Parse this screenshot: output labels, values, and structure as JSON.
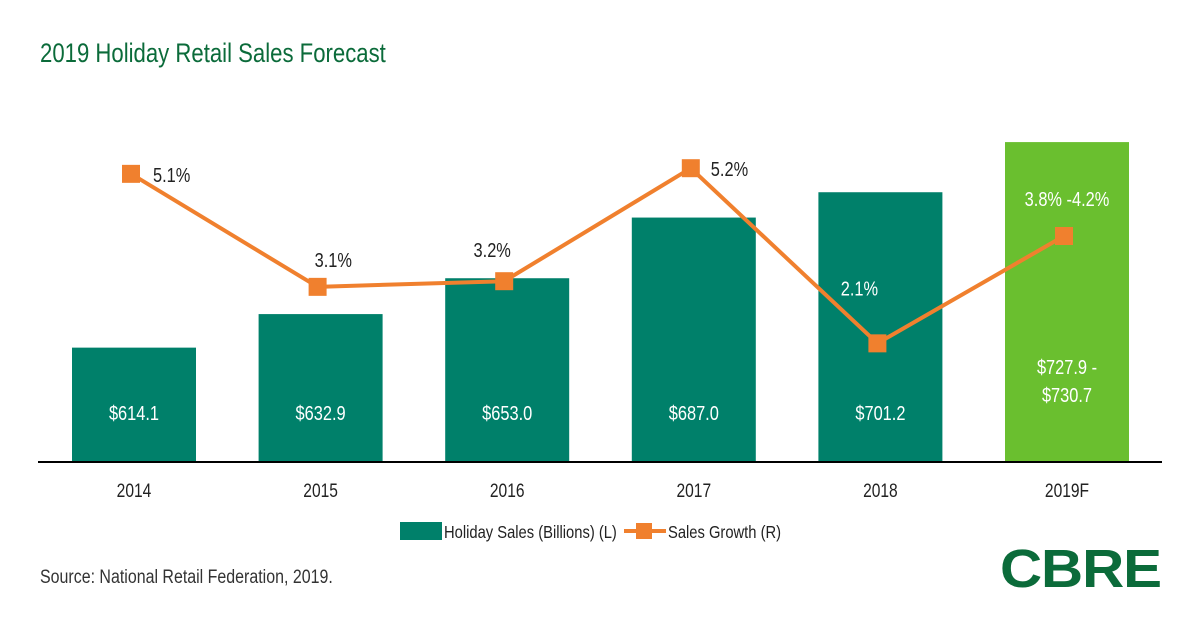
{
  "title": "2019 Holiday Retail Sales Forecast",
  "source": "Source: National Retail Federation, 2019.",
  "logo_text": "CBRE",
  "colors": {
    "bar": "#00806a",
    "bar_forecast": "#6abf2f",
    "line": "#f0802e",
    "title": "#0b6b3a"
  },
  "chart_data": {
    "type": "bar",
    "categories": [
      "2014",
      "2015",
      "2016",
      "2017",
      "2018",
      "2019F"
    ],
    "series": [
      {
        "name": "Holiday Sales (Billions) (L)",
        "type": "bar",
        "axis": "left",
        "values": [
          614.1,
          632.9,
          653.0,
          687.0,
          701.2,
          729.3
        ],
        "labels": [
          "$614.1",
          "$632.9",
          "$653.0",
          "$687.0",
          "$701.2",
          [
            "$727.9 -",
            "$730.7"
          ]
        ]
      },
      {
        "name": "Sales Growth (R)",
        "type": "line",
        "axis": "right",
        "values": [
          5.1,
          3.1,
          3.2,
          5.2,
          2.1,
          4.0
        ],
        "labels": [
          "5.1%",
          "3.1%",
          "3.2%",
          "5.2%",
          "2.1%",
          "3.8% -4.2%"
        ]
      }
    ],
    "ylim_left": [
      550,
      740
    ],
    "ylim_right": [
      0,
      6
    ],
    "grid": false,
    "legend": "bottom-center"
  }
}
